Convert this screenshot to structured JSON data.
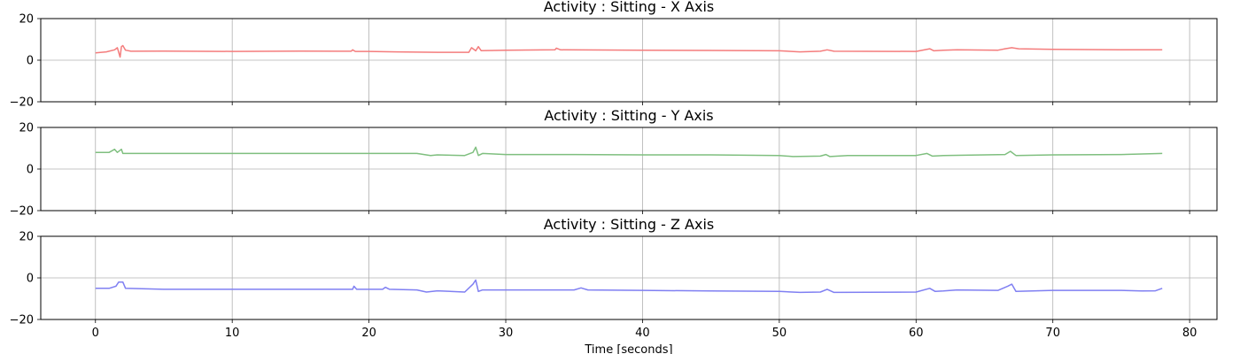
{
  "chart_data": [
    {
      "type": "line",
      "title": "Activity : Sitting - X Axis",
      "color": "#f47c7c",
      "xlim": [
        -4,
        82
      ],
      "ylim": [
        -20,
        20
      ],
      "yticks": [
        -20,
        0,
        20
      ],
      "xticks": [
        0,
        10,
        20,
        30,
        40,
        50,
        60,
        70,
        80
      ],
      "show_xticklabels": false,
      "grid": true,
      "points": [
        [
          0,
          3.5
        ],
        [
          0.8,
          4
        ],
        [
          1.4,
          5
        ],
        [
          1.6,
          6
        ],
        [
          1.8,
          1.5
        ],
        [
          1.9,
          6.5
        ],
        [
          2.0,
          7
        ],
        [
          2.2,
          4.8
        ],
        [
          2.6,
          4.3
        ],
        [
          5,
          4.4
        ],
        [
          10,
          4.2
        ],
        [
          15,
          4.4
        ],
        [
          18.7,
          4.3
        ],
        [
          18.8,
          5
        ],
        [
          19,
          4.2
        ],
        [
          20,
          4.2
        ],
        [
          22,
          4
        ],
        [
          25,
          3.8
        ],
        [
          27.3,
          3.8
        ],
        [
          27.5,
          6
        ],
        [
          27.8,
          4.5
        ],
        [
          28,
          6.5
        ],
        [
          28.2,
          4.6
        ],
        [
          30,
          4.8
        ],
        [
          33.6,
          5
        ],
        [
          33.7,
          5.8
        ],
        [
          34,
          5
        ],
        [
          40,
          4.8
        ],
        [
          45,
          4.7
        ],
        [
          50,
          4.5
        ],
        [
          51.5,
          4
        ],
        [
          53,
          4.3
        ],
        [
          53.5,
          5
        ],
        [
          54,
          4.3
        ],
        [
          60,
          4.2
        ],
        [
          61,
          5.5
        ],
        [
          61.3,
          4.5
        ],
        [
          62,
          4.8
        ],
        [
          63,
          5
        ],
        [
          66,
          4.8
        ],
        [
          66.5,
          5.5
        ],
        [
          67,
          6
        ],
        [
          67.5,
          5.5
        ],
        [
          70,
          5.2
        ],
        [
          75,
          5
        ],
        [
          78,
          5
        ]
      ]
    },
    {
      "type": "line",
      "title": "Activity : Sitting - Y Axis",
      "color": "#7fbf7f",
      "xlim": [
        -4,
        82
      ],
      "ylim": [
        -20,
        20
      ],
      "yticks": [
        -20,
        0,
        20
      ],
      "xticks": [
        0,
        10,
        20,
        30,
        40,
        50,
        60,
        70,
        80
      ],
      "show_xticklabels": false,
      "grid": true,
      "points": [
        [
          0,
          8
        ],
        [
          1,
          8
        ],
        [
          1.4,
          9.5
        ],
        [
          1.6,
          8
        ],
        [
          1.9,
          9.5
        ],
        [
          2.0,
          7.5
        ],
        [
          2.2,
          7.5
        ],
        [
          5,
          7.5
        ],
        [
          10,
          7.5
        ],
        [
          15,
          7.5
        ],
        [
          20,
          7.5
        ],
        [
          23.5,
          7.5
        ],
        [
          24.5,
          6.5
        ],
        [
          25,
          6.8
        ],
        [
          27,
          6.5
        ],
        [
          27.6,
          8
        ],
        [
          27.8,
          10.5
        ],
        [
          28,
          6.5
        ],
        [
          28.3,
          7.5
        ],
        [
          30,
          7
        ],
        [
          35,
          7
        ],
        [
          40,
          6.8
        ],
        [
          45,
          6.8
        ],
        [
          50,
          6.5
        ],
        [
          51,
          6
        ],
        [
          53,
          6.2
        ],
        [
          53.4,
          7
        ],
        [
          53.7,
          6
        ],
        [
          55,
          6.5
        ],
        [
          60,
          6.5
        ],
        [
          60.8,
          7.5
        ],
        [
          61.2,
          6.2
        ],
        [
          62,
          6.5
        ],
        [
          66.5,
          7
        ],
        [
          66.9,
          8.5
        ],
        [
          67.3,
          6.5
        ],
        [
          70,
          6.8
        ],
        [
          75,
          7
        ],
        [
          78,
          7.5
        ]
      ]
    },
    {
      "type": "line",
      "title": "Activity : Sitting - Z Axis",
      "color": "#7f7ff2",
      "xlim": [
        -4,
        82
      ],
      "ylim": [
        -20,
        20
      ],
      "yticks": [
        -20,
        0,
        20
      ],
      "xticks": [
        0,
        10,
        20,
        30,
        40,
        50,
        60,
        70,
        80
      ],
      "show_xticklabels": false,
      "xticklabels": [
        "0",
        "10",
        "20",
        "30",
        "40",
        "50",
        "60",
        "70",
        "80"
      ],
      "xlabel": "Time [seconds]",
      "grid": true,
      "points": [
        [
          0,
          -5
        ],
        [
          1,
          -5
        ],
        [
          1.5,
          -4
        ],
        [
          1.7,
          -2
        ],
        [
          2.0,
          -2
        ],
        [
          2.2,
          -5
        ],
        [
          5,
          -5.5
        ],
        [
          10,
          -5.5
        ],
        [
          15,
          -5.5
        ],
        [
          18.8,
          -5.5
        ],
        [
          18.9,
          -4
        ],
        [
          19.1,
          -5.5
        ],
        [
          21,
          -5.5
        ],
        [
          21.2,
          -4.5
        ],
        [
          21.5,
          -5.5
        ],
        [
          23.5,
          -5.8
        ],
        [
          24.2,
          -6.8
        ],
        [
          25,
          -6.2
        ],
        [
          27,
          -6.8
        ],
        [
          27.6,
          -3
        ],
        [
          27.8,
          -1
        ],
        [
          28,
          -6.5
        ],
        [
          28.3,
          -5.8
        ],
        [
          30,
          -5.8
        ],
        [
          35,
          -5.8
        ],
        [
          35.5,
          -4.8
        ],
        [
          36,
          -5.8
        ],
        [
          40,
          -6
        ],
        [
          45,
          -6.3
        ],
        [
          50,
          -6.5
        ],
        [
          51.5,
          -7
        ],
        [
          53,
          -6.8
        ],
        [
          53.5,
          -5.5
        ],
        [
          54,
          -7
        ],
        [
          60,
          -6.8
        ],
        [
          61,
          -5
        ],
        [
          61.4,
          -6.5
        ],
        [
          62,
          -6.3
        ],
        [
          63,
          -5.8
        ],
        [
          66,
          -6
        ],
        [
          66.7,
          -4
        ],
        [
          67,
          -3
        ],
        [
          67.3,
          -6.5
        ],
        [
          70,
          -6
        ],
        [
          75,
          -6
        ],
        [
          76.5,
          -6.3
        ],
        [
          77.5,
          -6.2
        ],
        [
          78,
          -5
        ]
      ]
    }
  ]
}
